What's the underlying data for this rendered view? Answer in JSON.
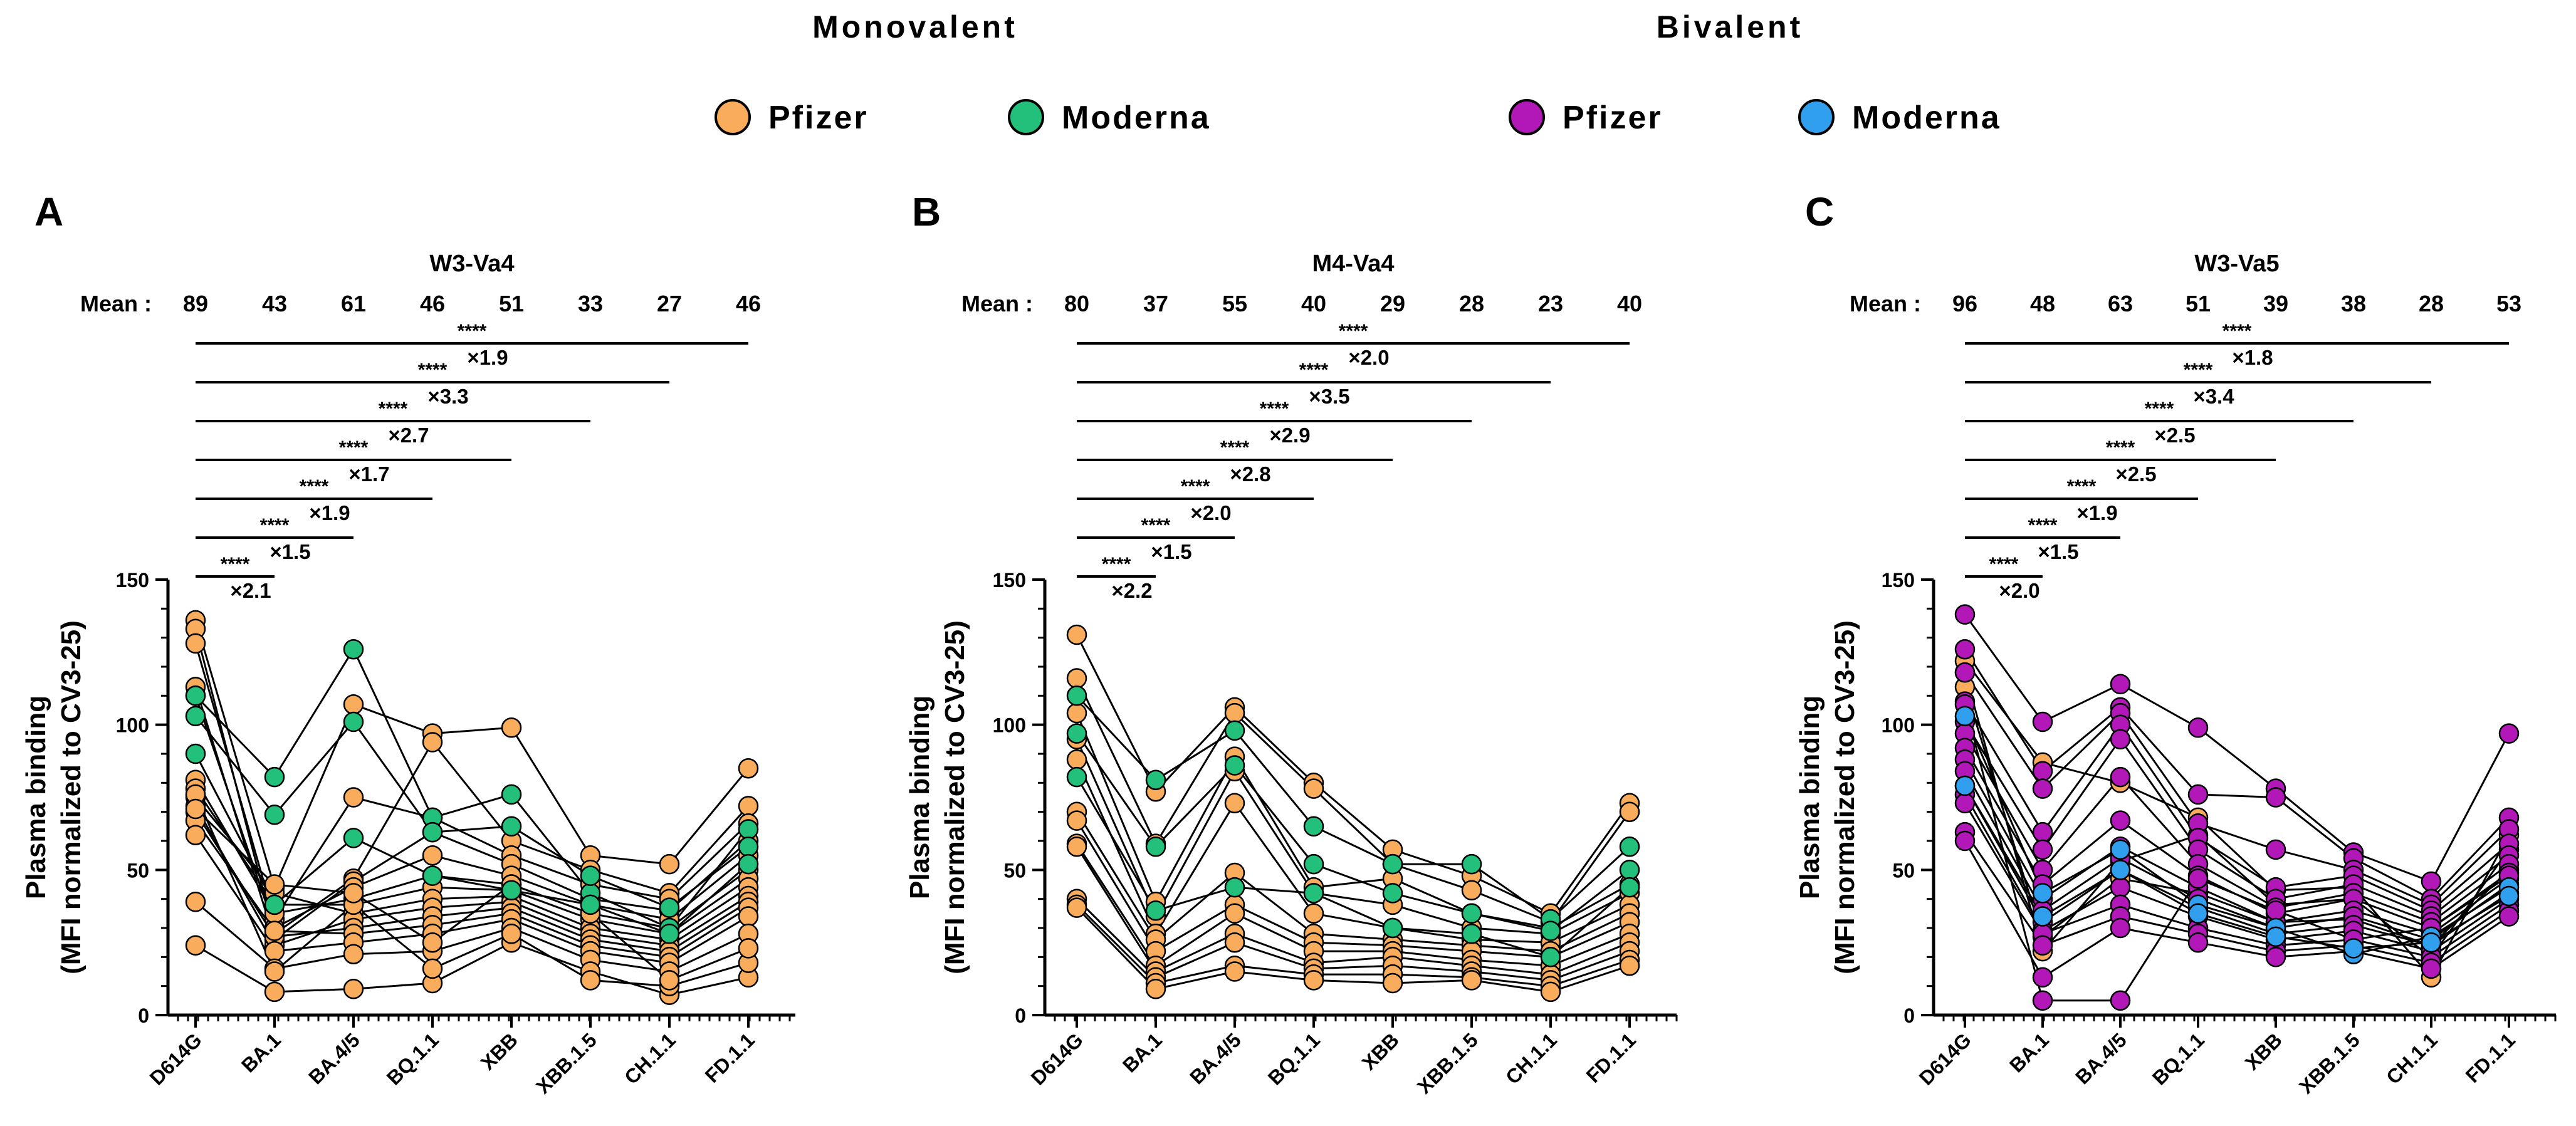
{
  "header": {
    "group_titles": [
      "Monovalent",
      "Bivalent"
    ],
    "legend": [
      {
        "label": "Pfizer",
        "color": "#f8ac5c",
        "group": "Monovalent"
      },
      {
        "label": "Moderna",
        "color": "#22c07a",
        "group": "Monovalent"
      },
      {
        "label": "Pfizer",
        "color": "#b218b8",
        "group": "Bivalent"
      },
      {
        "label": "Moderna",
        "color": "#2f9fee",
        "group": "Bivalent"
      }
    ]
  },
  "chart_data": [
    {
      "type": "scatter",
      "panel": "A",
      "title": "W3-Va4",
      "categories": [
        "D614G",
        "BA.1",
        "BA.4/5",
        "BQ.1.1",
        "XBB",
        "XBB.1.5",
        "CH.1.1",
        "FD.1.1"
      ],
      "ylabel_line1": "Plasma binding",
      "ylabel_line2": "(MFI normalized to CV3-25)",
      "ylim": [
        0,
        150
      ],
      "yticks": [
        "0",
        "50",
        "100",
        "150"
      ],
      "mean_label": "Mean :",
      "means": [
        "89",
        "43",
        "61",
        "46",
        "51",
        "33",
        "27",
        "46"
      ],
      "comparisons": [
        {
          "stars": "****",
          "fold": "×2.1"
        },
        {
          "stars": "****",
          "fold": "×1.5"
        },
        {
          "stars": "****",
          "fold": "×1.9"
        },
        {
          "stars": "****",
          "fold": "×1.7"
        },
        {
          "stars": "****",
          "fold": "×2.7"
        },
        {
          "stars": "****",
          "fold": "×3.3"
        },
        {
          "stars": "****",
          "fold": "×1.9"
        }
      ],
      "series": [
        {
          "name": "Pfizer",
          "color": "#f8ac5c",
          "subjects": [
            [
              136,
              44,
              107,
              97,
              99,
              55,
              52,
              85
            ],
            [
              133,
              28,
              47,
              94,
              60,
              50,
              42,
              72
            ],
            [
              128,
              33,
              75,
              68,
              55,
              45,
              40,
              66
            ],
            [
              113,
              26,
              46,
              63,
              52,
              40,
              36,
              60
            ],
            [
              110,
              30,
              44,
              55,
              48,
              38,
              33,
              55
            ],
            [
              81,
              35,
              40,
              48,
              45,
              35,
              30,
              50
            ],
            [
              78,
              38,
              38,
              44,
              43,
              33,
              28,
              47
            ],
            [
              75,
              42,
              35,
              40,
              41,
              30,
              26,
              44
            ],
            [
              72,
              24,
              33,
              37,
              39,
              28,
              24,
              41
            ],
            [
              70,
              27,
              30,
              34,
              37,
              26,
              22,
              39
            ],
            [
              67,
              29,
              28,
              31,
              35,
              24,
              20,
              37
            ],
            [
              62,
              22,
              25,
              28,
              33,
              22,
              18,
              34
            ],
            [
              39,
              16,
              21,
              22,
              30,
              19,
              15,
              28
            ],
            [
              24,
              8,
              9,
              11,
              25,
              15,
              7,
              13
            ],
            [
              76,
              15,
              38,
              16,
              28,
              12,
              10,
              18
            ],
            [
              71,
              45,
              42,
              25,
              45,
              35,
              12,
              23
            ]
          ]
        },
        {
          "name": "Moderna",
          "color": "#22c07a",
          "subjects": [
            [
              110,
              82,
              126,
              68,
              76,
              42,
              30,
              64
            ],
            [
              103,
              69,
              101,
              63,
              65,
              48,
              37,
              58
            ],
            [
              90,
              38,
              61,
              48,
              43,
              38,
              28,
              52
            ]
          ]
        }
      ]
    },
    {
      "type": "scatter",
      "panel": "B",
      "title": "M4-Va4",
      "categories": [
        "D614G",
        "BA.1",
        "BA.4/5",
        "BQ.1.1",
        "XBB",
        "XBB.1.5",
        "CH.1.1",
        "FD.1.1"
      ],
      "ylabel_line1": "Plasma binding",
      "ylabel_line2": "(MFI normalized to CV3-25)",
      "ylim": [
        0,
        150
      ],
      "yticks": [
        "0",
        "50",
        "100",
        "150"
      ],
      "mean_label": "Mean :",
      "means": [
        "80",
        "37",
        "55",
        "40",
        "29",
        "28",
        "23",
        "40"
      ],
      "comparisons": [
        {
          "stars": "****",
          "fold": "×2.2"
        },
        {
          "stars": "****",
          "fold": "×1.5"
        },
        {
          "stars": "****",
          "fold": "×2.0"
        },
        {
          "stars": "****",
          "fold": "×2.8"
        },
        {
          "stars": "****",
          "fold": "×2.9"
        },
        {
          "stars": "****",
          "fold": "×3.5"
        },
        {
          "stars": "****",
          "fold": "×2.0"
        }
      ],
      "series": [
        {
          "name": "Pfizer",
          "color": "#f8ac5c",
          "subjects": [
            [
              131,
              77,
              106,
              80,
              57,
              48,
              35,
              73
            ],
            [
              116,
              59,
              104,
              78,
              52,
              43,
              32,
              70
            ],
            [
              104,
              39,
              89,
              44,
              47,
              35,
              30,
              45
            ],
            [
              95,
              34,
              84,
              42,
              38,
              30,
              28,
              42
            ],
            [
              88,
              28,
              73,
              35,
              30,
              26,
              25,
              38
            ],
            [
              70,
              26,
              49,
              28,
              26,
              24,
              22,
              35
            ],
            [
              67,
              22,
              38,
              25,
              24,
              22,
              20,
              32
            ],
            [
              59,
              17,
              35,
              22,
              22,
              19,
              17,
              28
            ],
            [
              58,
              15,
              28,
              18,
              20,
              17,
              14,
              25
            ],
            [
              40,
              13,
              25,
              16,
              17,
              15,
              12,
              22
            ],
            [
              38,
              11,
              17,
              14,
              14,
              13,
              10,
              19
            ],
            [
              37,
              9,
              15,
              12,
              11,
              12,
              8,
              17
            ]
          ]
        },
        {
          "name": "Moderna",
          "color": "#22c07a",
          "subjects": [
            [
              110,
              81,
              98,
              65,
              52,
              52,
              33,
              58
            ],
            [
              97,
              58,
              86,
              52,
              42,
              35,
              29,
              50
            ],
            [
              82,
              36,
              44,
              42,
              30,
              28,
              20,
              44
            ]
          ]
        }
      ]
    },
    {
      "type": "scatter",
      "panel": "C",
      "title": "W3-Va5",
      "categories": [
        "D614G",
        "BA.1",
        "BA.4/5",
        "BQ.1.1",
        "XBB",
        "XBB.1.5",
        "CH.1.1",
        "FD.1.1"
      ],
      "ylabel_line1": "Plasma binding",
      "ylabel_line2": "(MFI normalized to CV3-25)",
      "ylim": [
        0,
        150
      ],
      "yticks": [
        "0",
        "50",
        "100",
        "150"
      ],
      "mean_label": "Mean :",
      "means": [
        "96",
        "48",
        "63",
        "51",
        "39",
        "38",
        "28",
        "53"
      ],
      "comparisons": [
        {
          "stars": "****",
          "fold": "×2.0"
        },
        {
          "stars": "****",
          "fold": "×1.5"
        },
        {
          "stars": "****",
          "fold": "×1.9"
        },
        {
          "stars": "****",
          "fold": "×2.5"
        },
        {
          "stars": "****",
          "fold": "×2.5"
        },
        {
          "stars": "****",
          "fold": "×3.4"
        },
        {
          "stars": "****",
          "fold": "×1.8"
        }
      ],
      "series": [
        {
          "name": "Pfizer",
          "color": "#f8ac5c",
          "subjects": [
            [
              122,
              87,
              80,
              68,
              43,
              44,
              13,
              62
            ],
            [
              118,
              22,
              53,
              62,
              38,
              40,
              20,
              57
            ],
            [
              113,
              27,
              47,
              42,
              32,
              33,
              24,
              50
            ]
          ]
        },
        {
          "name": "Bivalent Pfizer",
          "color": "#b218b8",
          "subjects": [
            [
              138,
              101,
              114,
              99,
              78,
              56,
              46,
              97
            ],
            [
              126,
              84,
              106,
              76,
              75,
              54,
              40,
              68
            ],
            [
              118,
              78,
              104,
              66,
              57,
              50,
              38,
              64
            ],
            [
              108,
              63,
              100,
              61,
              44,
              48,
              36,
              59
            ],
            [
              101,
              57,
              95,
              57,
              40,
              45,
              34,
              55
            ],
            [
              97,
              50,
              82,
              52,
              37,
              42,
              32,
              52
            ],
            [
              92,
              45,
              67,
              48,
              35,
              40,
              30,
              49
            ],
            [
              88,
              40,
              58,
              44,
              32,
              36,
              28,
              47
            ],
            [
              84,
              36,
              54,
              40,
              30,
              34,
              26,
              45
            ],
            [
              79,
              32,
              50,
              37,
              28,
              31,
              24,
              42
            ],
            [
              76,
              29,
              44,
              34,
              26,
              29,
              22,
              40
            ],
            [
              73,
              28,
              38,
              30,
              24,
              26,
              20,
              38
            ],
            [
              63,
              24,
              34,
              28,
              22,
              24,
              18,
              36
            ],
            [
              60,
              13,
              30,
              25,
              20,
              22,
              16,
              34
            ],
            [
              107,
              5,
              5,
              47,
              36,
              26,
              30,
              48
            ]
          ]
        },
        {
          "name": "Bivalent Moderna",
          "color": "#2f9fee",
          "subjects": [
            [
              103,
              42,
              57,
              38,
              30,
              21,
              27,
              44
            ],
            [
              79,
              34,
              50,
              35,
              27,
              23,
              25,
              41
            ]
          ]
        }
      ]
    }
  ]
}
